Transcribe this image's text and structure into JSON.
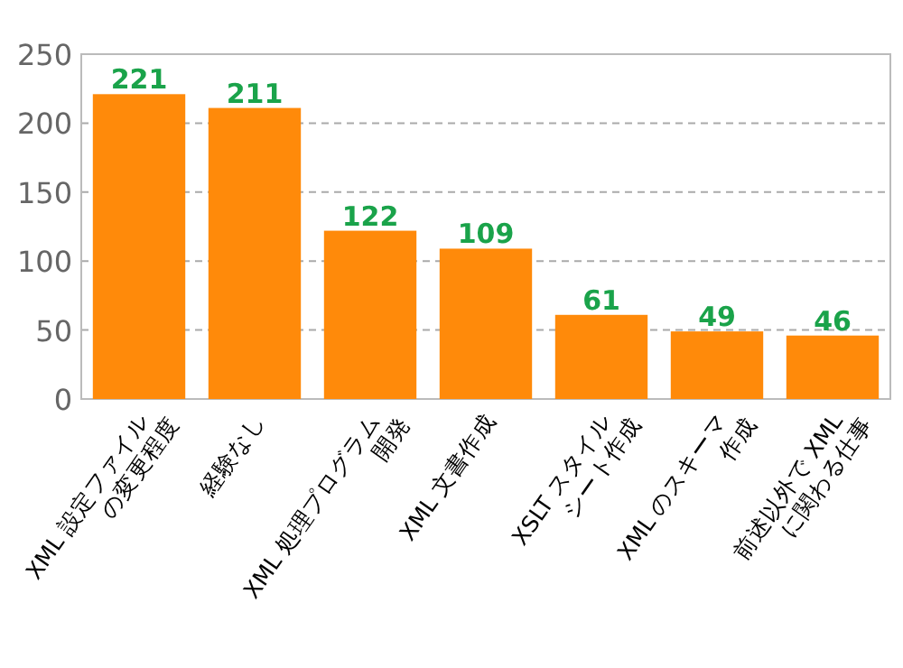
{
  "chart_data": {
    "type": "bar",
    "categories": [
      "XML 設定ファイル\nの変更程度",
      "経験なし",
      "XML 処理プログラム\n開発",
      "XML 文書作成",
      "XSLT スタイル\nシート作成",
      "XML のスキーマ\n作成",
      "前述以外で XML\nに関わる仕事"
    ],
    "values": [
      221,
      211,
      122,
      109,
      61,
      49,
      46
    ],
    "color": "#ff8a0a",
    "ylim": [
      0,
      250
    ],
    "yticks": [
      0,
      50,
      100,
      150,
      200,
      250
    ],
    "grid": "y",
    "data_labels": true
  }
}
